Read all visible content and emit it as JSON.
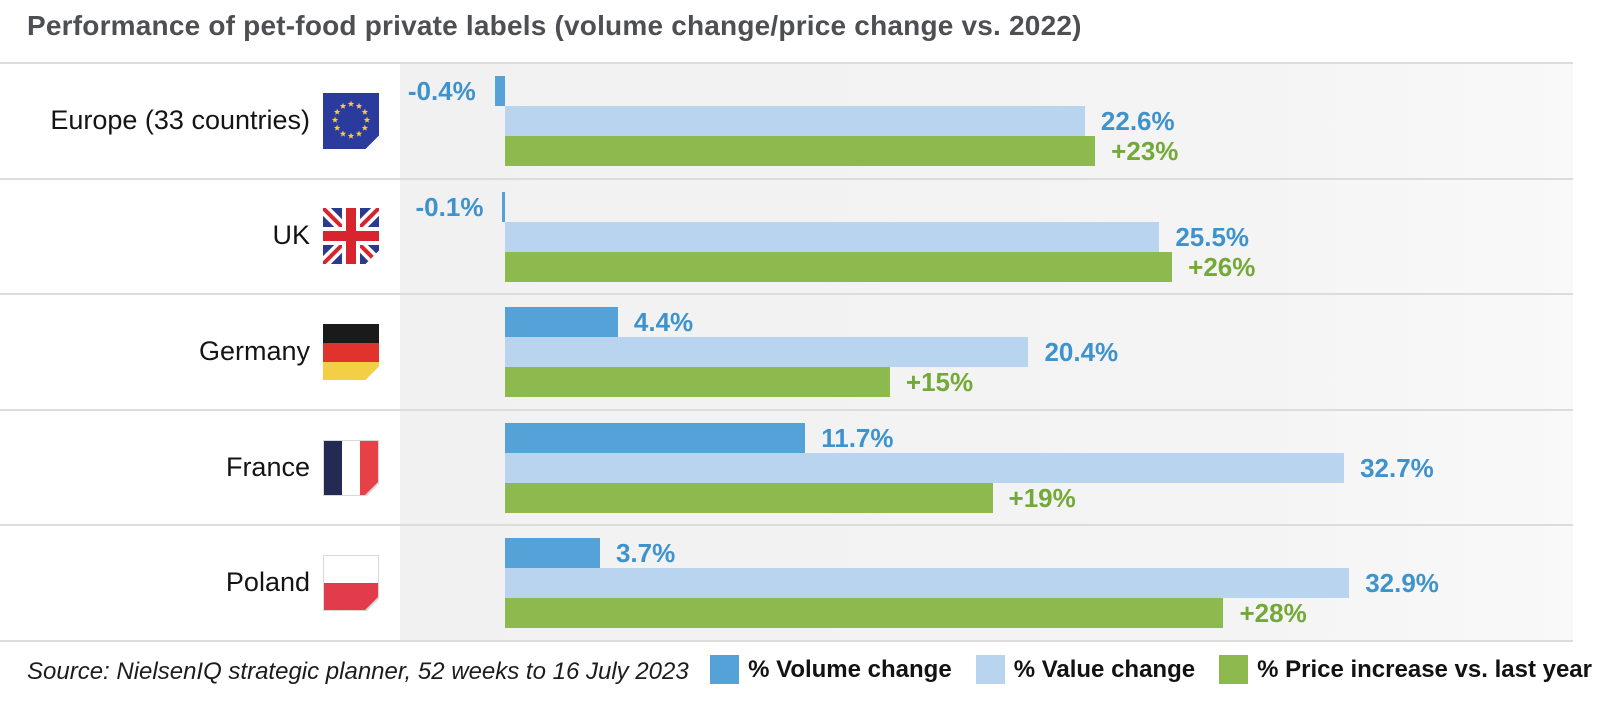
{
  "title": "Performance of pet-food private labels (volume change/price change vs. 2022)",
  "source": {
    "text": "Source: NielsenIQ strategic planner, 52 weeks to 16 July 2023"
  },
  "legend": {
    "position": "bottom-right",
    "items": [
      {
        "label": "% Volume change",
        "color": "#55a2d8"
      },
      {
        "label": "% Value change",
        "color": "#b9d4ef"
      },
      {
        "label": "% Price increase vs. last year",
        "color": "#8cba4f"
      }
    ]
  },
  "colors": {
    "volume_bar": "#55a2d8",
    "value_bar": "#b9d4ef",
    "price_bar": "#8cba4f",
    "volume_value_label_text": "#3e93cd",
    "price_label_text": "#73a937",
    "title_text": "#4d4f52",
    "panel_background": "#f3f3f4",
    "separator": "#dcdcdc",
    "eu_flag_blue": "#2b3a9d",
    "eu_flag_star": "#f5cf3a",
    "uk_flag_blue": "#2b3a8f",
    "uk_flag_red": "#d8242f",
    "germany_black": "#1a1a1a",
    "germany_red": "#e1332d",
    "germany_gold": "#f3cf45",
    "france_navy": "#232a54",
    "france_red": "#e54146",
    "poland_red": "#e13b4c"
  },
  "chart_data": {
    "type": "bar",
    "orientation": "horizontal",
    "title": "Performance of pet-food private labels (volume change/price change vs. 2022)",
    "categories": [
      "Europe (33 countries)",
      "UK",
      "Germany",
      "France",
      "Poland"
    ],
    "flags": [
      "eu",
      "uk",
      "de",
      "fr",
      "pl"
    ],
    "series": [
      {
        "name": "% Volume change",
        "values": [
          -0.4,
          -0.1,
          4.4,
          11.7,
          3.7
        ],
        "labels": [
          "-0.4%",
          "-0.1%",
          "4.4%",
          "11.7%",
          "3.7%"
        ]
      },
      {
        "name": "% Value change",
        "values": [
          22.6,
          25.5,
          20.4,
          32.7,
          32.9
        ],
        "labels": [
          "22.6%",
          "25.5%",
          "20.4%",
          "32.7%",
          "32.9%"
        ]
      },
      {
        "name": "% Price increase vs. last year",
        "values": [
          23,
          26,
          15,
          19,
          28
        ],
        "labels": [
          "+23%",
          "+26%",
          "+15%",
          "+19%",
          "+28%"
        ]
      }
    ],
    "xlim": [
      0,
      33.3
    ],
    "unit": "%",
    "grid": false,
    "value_labels": true
  }
}
